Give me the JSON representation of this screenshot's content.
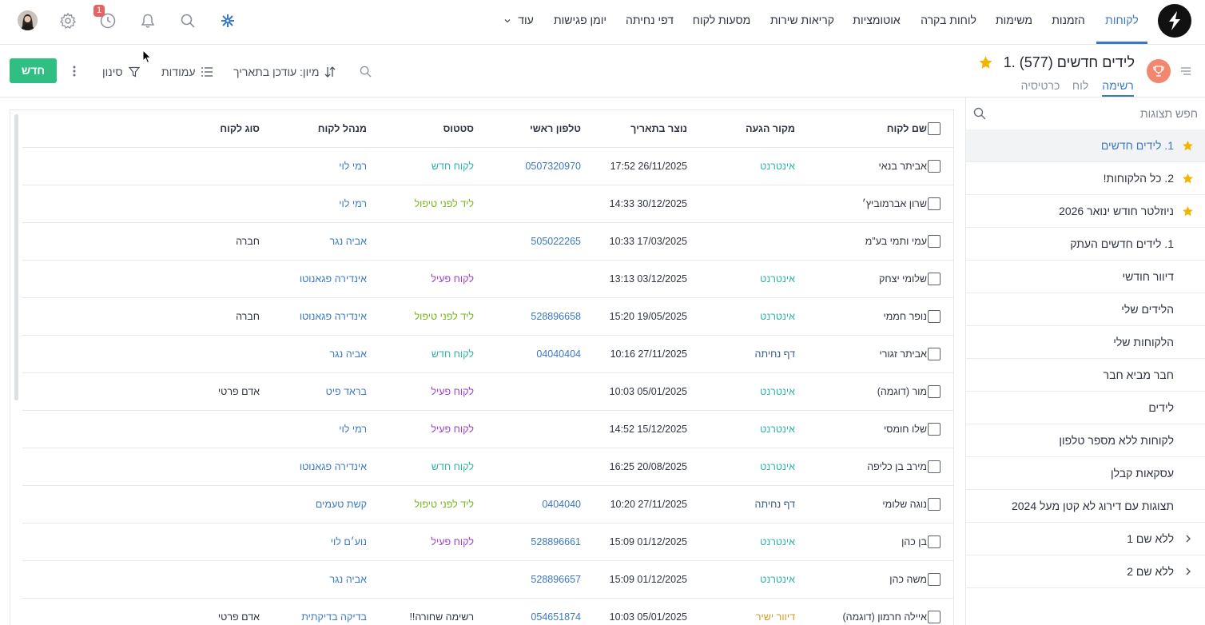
{
  "colors": {
    "accent": "#3b78c4",
    "new_button": "#2fbf83",
    "badge": "#e46364",
    "star": "#f2b400",
    "source_internet": "#2bb5a5",
    "source_landing": "#3a5a8c",
    "source_mail": "#d39a25",
    "status_new_customer": "#2bb5a5",
    "status_pre_treatment": "#7ab51d",
    "status_active": "#9b3fc9",
    "status_blacklist": "#2d3340"
  },
  "topnav": {
    "items": [
      {
        "label": "לקוחות",
        "active": true
      },
      {
        "label": "הזמנות"
      },
      {
        "label": "משימות"
      },
      {
        "label": "לוחות בקרה"
      },
      {
        "label": "אוטומציות"
      },
      {
        "label": "קריאות שירות"
      },
      {
        "label": "מסעות לקוח"
      },
      {
        "label": "דפי נחיתה"
      },
      {
        "label": "יומן פגישות"
      }
    ],
    "more_label": "עוד",
    "more_icon": "chevron-down-icon",
    "icons": [
      "apps-icon",
      "search-icon",
      "bell-icon",
      "history-icon",
      "settings-icon",
      "user-avatar"
    ],
    "history_badge": "1"
  },
  "view": {
    "title": "1. לידים חדשים (577)",
    "tabs": [
      {
        "label": "רשימה",
        "active": true
      },
      {
        "label": "לוח"
      },
      {
        "label": "כרטיסיה"
      }
    ]
  },
  "toolbar": {
    "sort_label": "מיון: עודכן בתאריך",
    "columns_label": "עמודות",
    "filter_label": "סינון",
    "new_label": "חדש",
    "icons": [
      "search-icon",
      "sort-icon",
      "columns-icon",
      "filter-icon",
      "more-vertical-icon"
    ]
  },
  "sidebar": {
    "search_placeholder": "חפש תצוגות",
    "items": [
      {
        "label": "1. לידים חדשים",
        "starred": true,
        "active": true
      },
      {
        "label": "2. כל הלקוחות!",
        "starred": true
      },
      {
        "label": "ניוזלטר חודש ינואר 2026",
        "starred": true
      },
      {
        "label": "1. לידים חדשים העתק"
      },
      {
        "label": "דיוור חודשי"
      },
      {
        "label": "הלידים שלי"
      },
      {
        "label": "הלקוחות שלי"
      },
      {
        "label": "חבר מביא חבר"
      },
      {
        "label": "לידים"
      },
      {
        "label": "לקוחות ללא מספר טלפון"
      },
      {
        "label": "עסקאות קבלן"
      },
      {
        "label": "תצוגות עם דירוג לא קטן מעל 2024"
      },
      {
        "label": "ללא שם 1",
        "folder": true
      },
      {
        "label": "ללא שם 2",
        "folder": true
      }
    ]
  },
  "table": {
    "columns": [
      "שם לקוח",
      "מקור הגעה",
      "נוצר בתאריך",
      "טלפון ראשי",
      "סטטוס",
      "מנהל לקוח",
      "סוג לקוח"
    ],
    "rows": [
      {
        "name": "אביתר בנאי",
        "source": "אינטרנט",
        "created": "17:52 26/11/2025",
        "phone": "0507320970",
        "status": "לקוח חדש",
        "manager": "רמי לוי",
        "type": ""
      },
      {
        "name": "שרון אברמוביץ׳",
        "source": "",
        "created": "14:33 30/12/2025",
        "phone": "",
        "status": "ליד לפני טיפול",
        "manager": "רמי לוי",
        "type": ""
      },
      {
        "name": "עמי ותמי בע\"מ",
        "source": "",
        "created": "10:33 17/03/2025",
        "phone": "505022265",
        "status": "",
        "manager": "אביה נגר",
        "type": "חברה"
      },
      {
        "name": "שלומי יצחק",
        "source": "אינטרנט",
        "created": "13:13 03/12/2025",
        "phone": "",
        "status": "לקוח פעיל",
        "manager": "אינדירה פגאנוטו",
        "type": ""
      },
      {
        "name": "נופר חממי",
        "source": "אינטרנט",
        "created": "15:20 19/05/2025",
        "phone": "528896658",
        "status": "ליד לפני טיפול",
        "manager": "אינדירה פגאנוטו",
        "type": "חברה"
      },
      {
        "name": "אביתר זגורי",
        "source": "דף נחיתה",
        "created": "10:16 27/11/2025",
        "phone": "04040404",
        "status": "לקוח חדש",
        "manager": "אביה נגר",
        "type": ""
      },
      {
        "name": "מור (דוגמה)",
        "source": "אינטרנט",
        "created": "10:03 05/01/2025",
        "phone": "",
        "status": "לקוח פעיל",
        "manager": "בראד פיט",
        "type": "אדם פרטי"
      },
      {
        "name": "שלו חומסי",
        "source": "אינטרנט",
        "created": "14:52 15/12/2025",
        "phone": "",
        "status": "לקוח פעיל",
        "manager": "רמי לוי",
        "type": ""
      },
      {
        "name": "מירב בן כליפה",
        "source": "אינטרנט",
        "created": "16:25 20/08/2025",
        "phone": "",
        "status": "לקוח חדש",
        "manager": "אינדירה פגאנוטו",
        "type": ""
      },
      {
        "name": "נוגה שלומי",
        "source": "דף נחיתה",
        "created": "10:20 27/11/2025",
        "phone": "0404040",
        "status": "ליד לפני טיפול",
        "manager": "קשת טעמים",
        "type": ""
      },
      {
        "name": "בן כהן",
        "source": "אינטרנט",
        "created": "15:09 01/12/2025",
        "phone": "528896661",
        "status": "לקוח פעיל",
        "manager": "נוע׳ם לוי",
        "type": ""
      },
      {
        "name": "משה כהן",
        "source": "אינטרנט",
        "created": "15:09 01/12/2025",
        "phone": "528896657",
        "status": "",
        "manager": "אביה נגר",
        "type": ""
      },
      {
        "name": "איילה חרמון (דוגמה)",
        "source": "דיוור ישיר",
        "created": "10:03 05/01/2025",
        "phone": "054651874",
        "status": "רשימה שחורה!!",
        "manager": "בדיקה בדיקתית",
        "type": "אדם פרטי"
      }
    ]
  }
}
